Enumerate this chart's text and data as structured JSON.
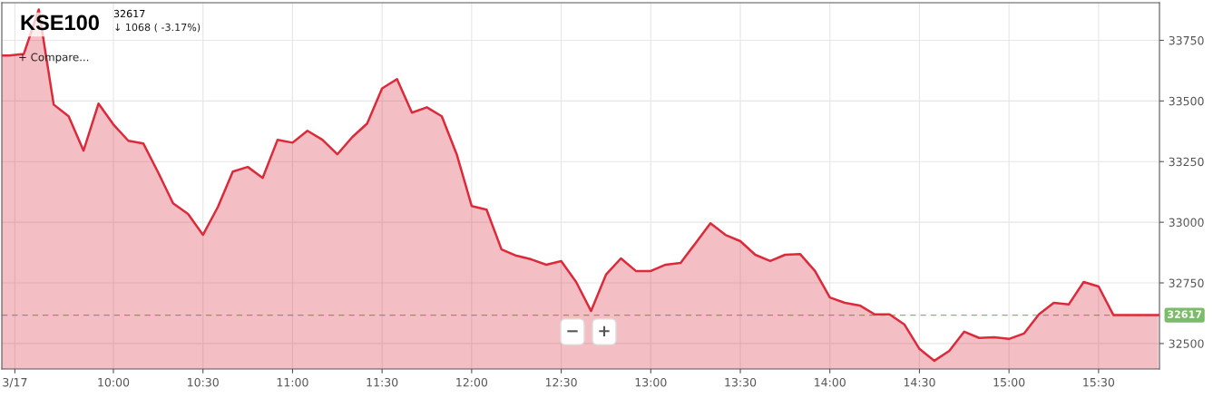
{
  "chart_data": {
    "type": "area",
    "title": "KSE100",
    "subtitle": "32617",
    "annotations": [
      "↓ 1068 ( -3.17%)",
      "+ Compare...",
      "−",
      "+"
    ],
    "x": [
      9.377,
      9.4167,
      9.5,
      9.5833,
      9.6667,
      9.75,
      9.8333,
      9.9167,
      10.0,
      10.0833,
      10.1667,
      10.25,
      10.3333,
      10.4167,
      10.5,
      10.5833,
      10.6667,
      10.75,
      10.8333,
      10.9167,
      11.0,
      11.0833,
      11.1667,
      11.25,
      11.3333,
      11.4167,
      11.5,
      11.5833,
      11.6667,
      11.75,
      11.8333,
      11.9167,
      12.0,
      12.0833,
      12.1667,
      12.25,
      12.3333,
      12.4167,
      12.5,
      12.5833,
      12.6667,
      12.75,
      12.8333,
      12.9167,
      13.0,
      13.0833,
      13.1667,
      13.25,
      13.3333,
      13.4167,
      13.5,
      13.5833,
      13.6667,
      13.75,
      13.8333,
      13.9167,
      14.0,
      14.0833,
      14.1667,
      14.25,
      14.3333,
      14.4167,
      14.5,
      14.5833,
      14.6667,
      14.75,
      14.8333,
      14.9167,
      15.0,
      15.0833,
      15.1667,
      15.25,
      15.3333,
      15.4167,
      15.5,
      15.5833,
      15.6667,
      15.75,
      15.8333
    ],
    "series": [
      {
        "color": "#dc2a3a",
        "values": [
          33687,
          33687,
          33694,
          33877,
          33485,
          33437,
          33295,
          33489,
          33403,
          33336,
          33325,
          33205,
          33078,
          33034,
          32948,
          33063,
          33209,
          33228,
          33183,
          33340,
          33328,
          33377,
          33340,
          33280,
          33351,
          33407,
          33552,
          33590,
          33452,
          33474,
          33437,
          33280,
          33067,
          33052,
          32888,
          32862,
          32847,
          32825,
          32840,
          32754,
          32634,
          32784,
          32851,
          32799,
          32799,
          32825,
          32832,
          32914,
          32996,
          32948,
          32922,
          32866,
          32840,
          32866,
          32869,
          32799,
          32690,
          32668,
          32657,
          32620,
          32620,
          32578,
          32478,
          32429,
          32470,
          32549,
          32523,
          32526,
          32519,
          32541,
          32620,
          32668,
          32661,
          32754,
          32735,
          32617,
          32617,
          32617,
          32617
        ]
      }
    ],
    "xlim": [
      9.377,
      15.84
    ],
    "ylim": [
      32395,
      33905
    ],
    "xticks": [
      {
        "value": 9.45,
        "label": "3/17"
      },
      {
        "value": 10,
        "label": "10:00"
      },
      {
        "value": 10.5,
        "label": "10:30"
      },
      {
        "value": 11,
        "label": "11:00"
      },
      {
        "value": 11.5,
        "label": "11:30"
      },
      {
        "value": 12,
        "label": "12:00"
      },
      {
        "value": 12.5,
        "label": "12:30"
      },
      {
        "value": 13,
        "label": "13:00"
      },
      {
        "value": 13.5,
        "label": "13:30"
      },
      {
        "value": 14,
        "label": "14:00"
      },
      {
        "value": 14.5,
        "label": "14:30"
      },
      {
        "value": 15,
        "label": "15:00"
      },
      {
        "value": 15.5,
        "label": "15:30"
      }
    ],
    "yticks": [
      32500,
      32750,
      33000,
      33250,
      33500,
      33750
    ],
    "ref_lines": [
      {
        "axis": "y",
        "value": 32617,
        "label": "32617",
        "color": "#7dbb6c",
        "line_style": "dashed"
      }
    ],
    "grid": true,
    "legend": false
  }
}
